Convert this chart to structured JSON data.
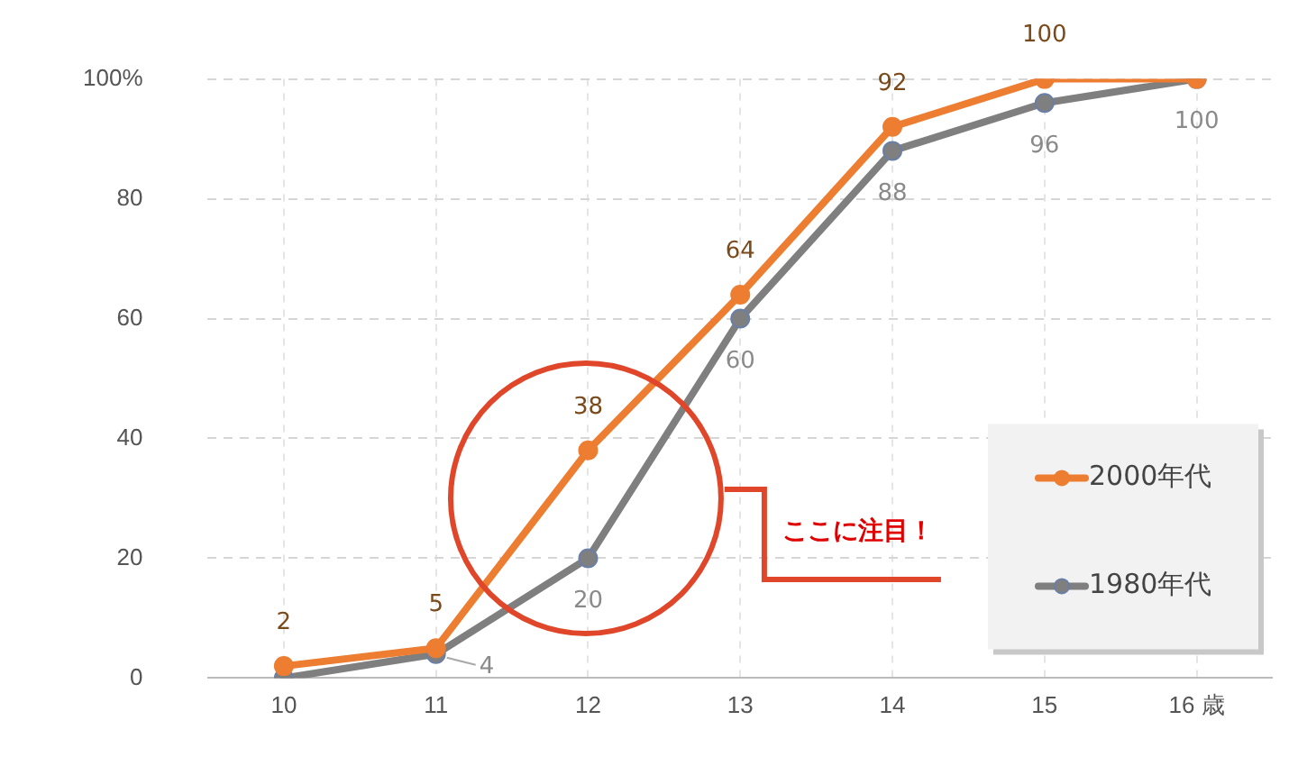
{
  "chart_data": {
    "type": "line",
    "categories": [
      "10",
      "11",
      "12",
      "13",
      "14",
      "15",
      "16 歳"
    ],
    "series": [
      {
        "name": "2000年代",
        "color": "#ed7d31",
        "values": [
          2,
          5,
          38,
          64,
          92,
          100,
          100
        ],
        "value_labels": [
          "2",
          "5",
          "38",
          "64",
          "92",
          "100",
          null
        ]
      },
      {
        "name": "1980年代",
        "color": "#7f7f7f",
        "values": [
          0,
          4,
          20,
          60,
          88,
          96,
          100
        ],
        "value_labels": [
          null,
          "4",
          "20",
          "60",
          "88",
          "96",
          "100"
        ]
      }
    ],
    "ylim": [
      0,
      100
    ],
    "yticks": [
      0,
      20,
      40,
      60,
      80,
      {
        "value": 100,
        "label": "100%"
      }
    ],
    "grid": true,
    "legend": "bottom right",
    "marker": "circle",
    "line_style": "solid",
    "annotations": [
      "ここに注目！"
    ]
  }
}
